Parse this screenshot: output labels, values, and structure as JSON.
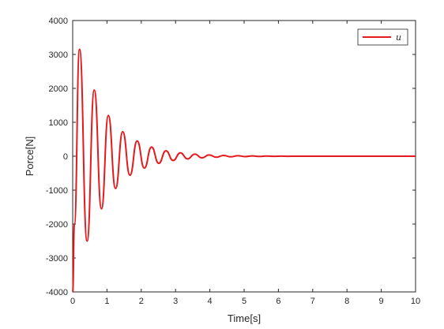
{
  "chart_data": {
    "type": "line",
    "title": "",
    "xlabel": "Time[s]",
    "ylabel": "Porce[N]",
    "xlim": [
      0,
      10
    ],
    "ylim": [
      -4000,
      4000
    ],
    "xticks": [
      0,
      1,
      2,
      3,
      4,
      5,
      6,
      7,
      8,
      9,
      10
    ],
    "yticks": [
      -4000,
      -3000,
      -2000,
      -1000,
      0,
      1000,
      2000,
      3000,
      4000
    ],
    "grid": false,
    "legend_position": "top-right",
    "series": [
      {
        "name": "u",
        "color": "#e41a1c",
        "x": [
          0,
          0.05,
          0.2,
          0.42,
          0.63,
          0.84,
          1.04,
          1.25,
          1.46,
          1.67,
          1.88,
          2.09,
          2.3,
          2.51,
          2.72,
          2.93,
          3.14,
          3.35,
          3.56,
          3.77,
          3.98,
          4.19,
          4.4,
          4.61,
          4.82,
          5.03,
          5.24,
          5.45,
          5.66,
          5.87,
          6.08,
          6.29,
          6.5,
          7.0,
          8.0,
          9.0,
          10.0
        ],
        "y": [
          -4000,
          -2000,
          3150,
          -2500,
          1950,
          -1550,
          1200,
          -950,
          720,
          -560,
          450,
          -350,
          270,
          -210,
          160,
          -125,
          100,
          -78,
          62,
          -48,
          38,
          -30,
          24,
          -18,
          14,
          -11,
          9,
          -7,
          5,
          -4,
          3,
          -2,
          1.5,
          0,
          0,
          0,
          0
        ]
      }
    ]
  }
}
